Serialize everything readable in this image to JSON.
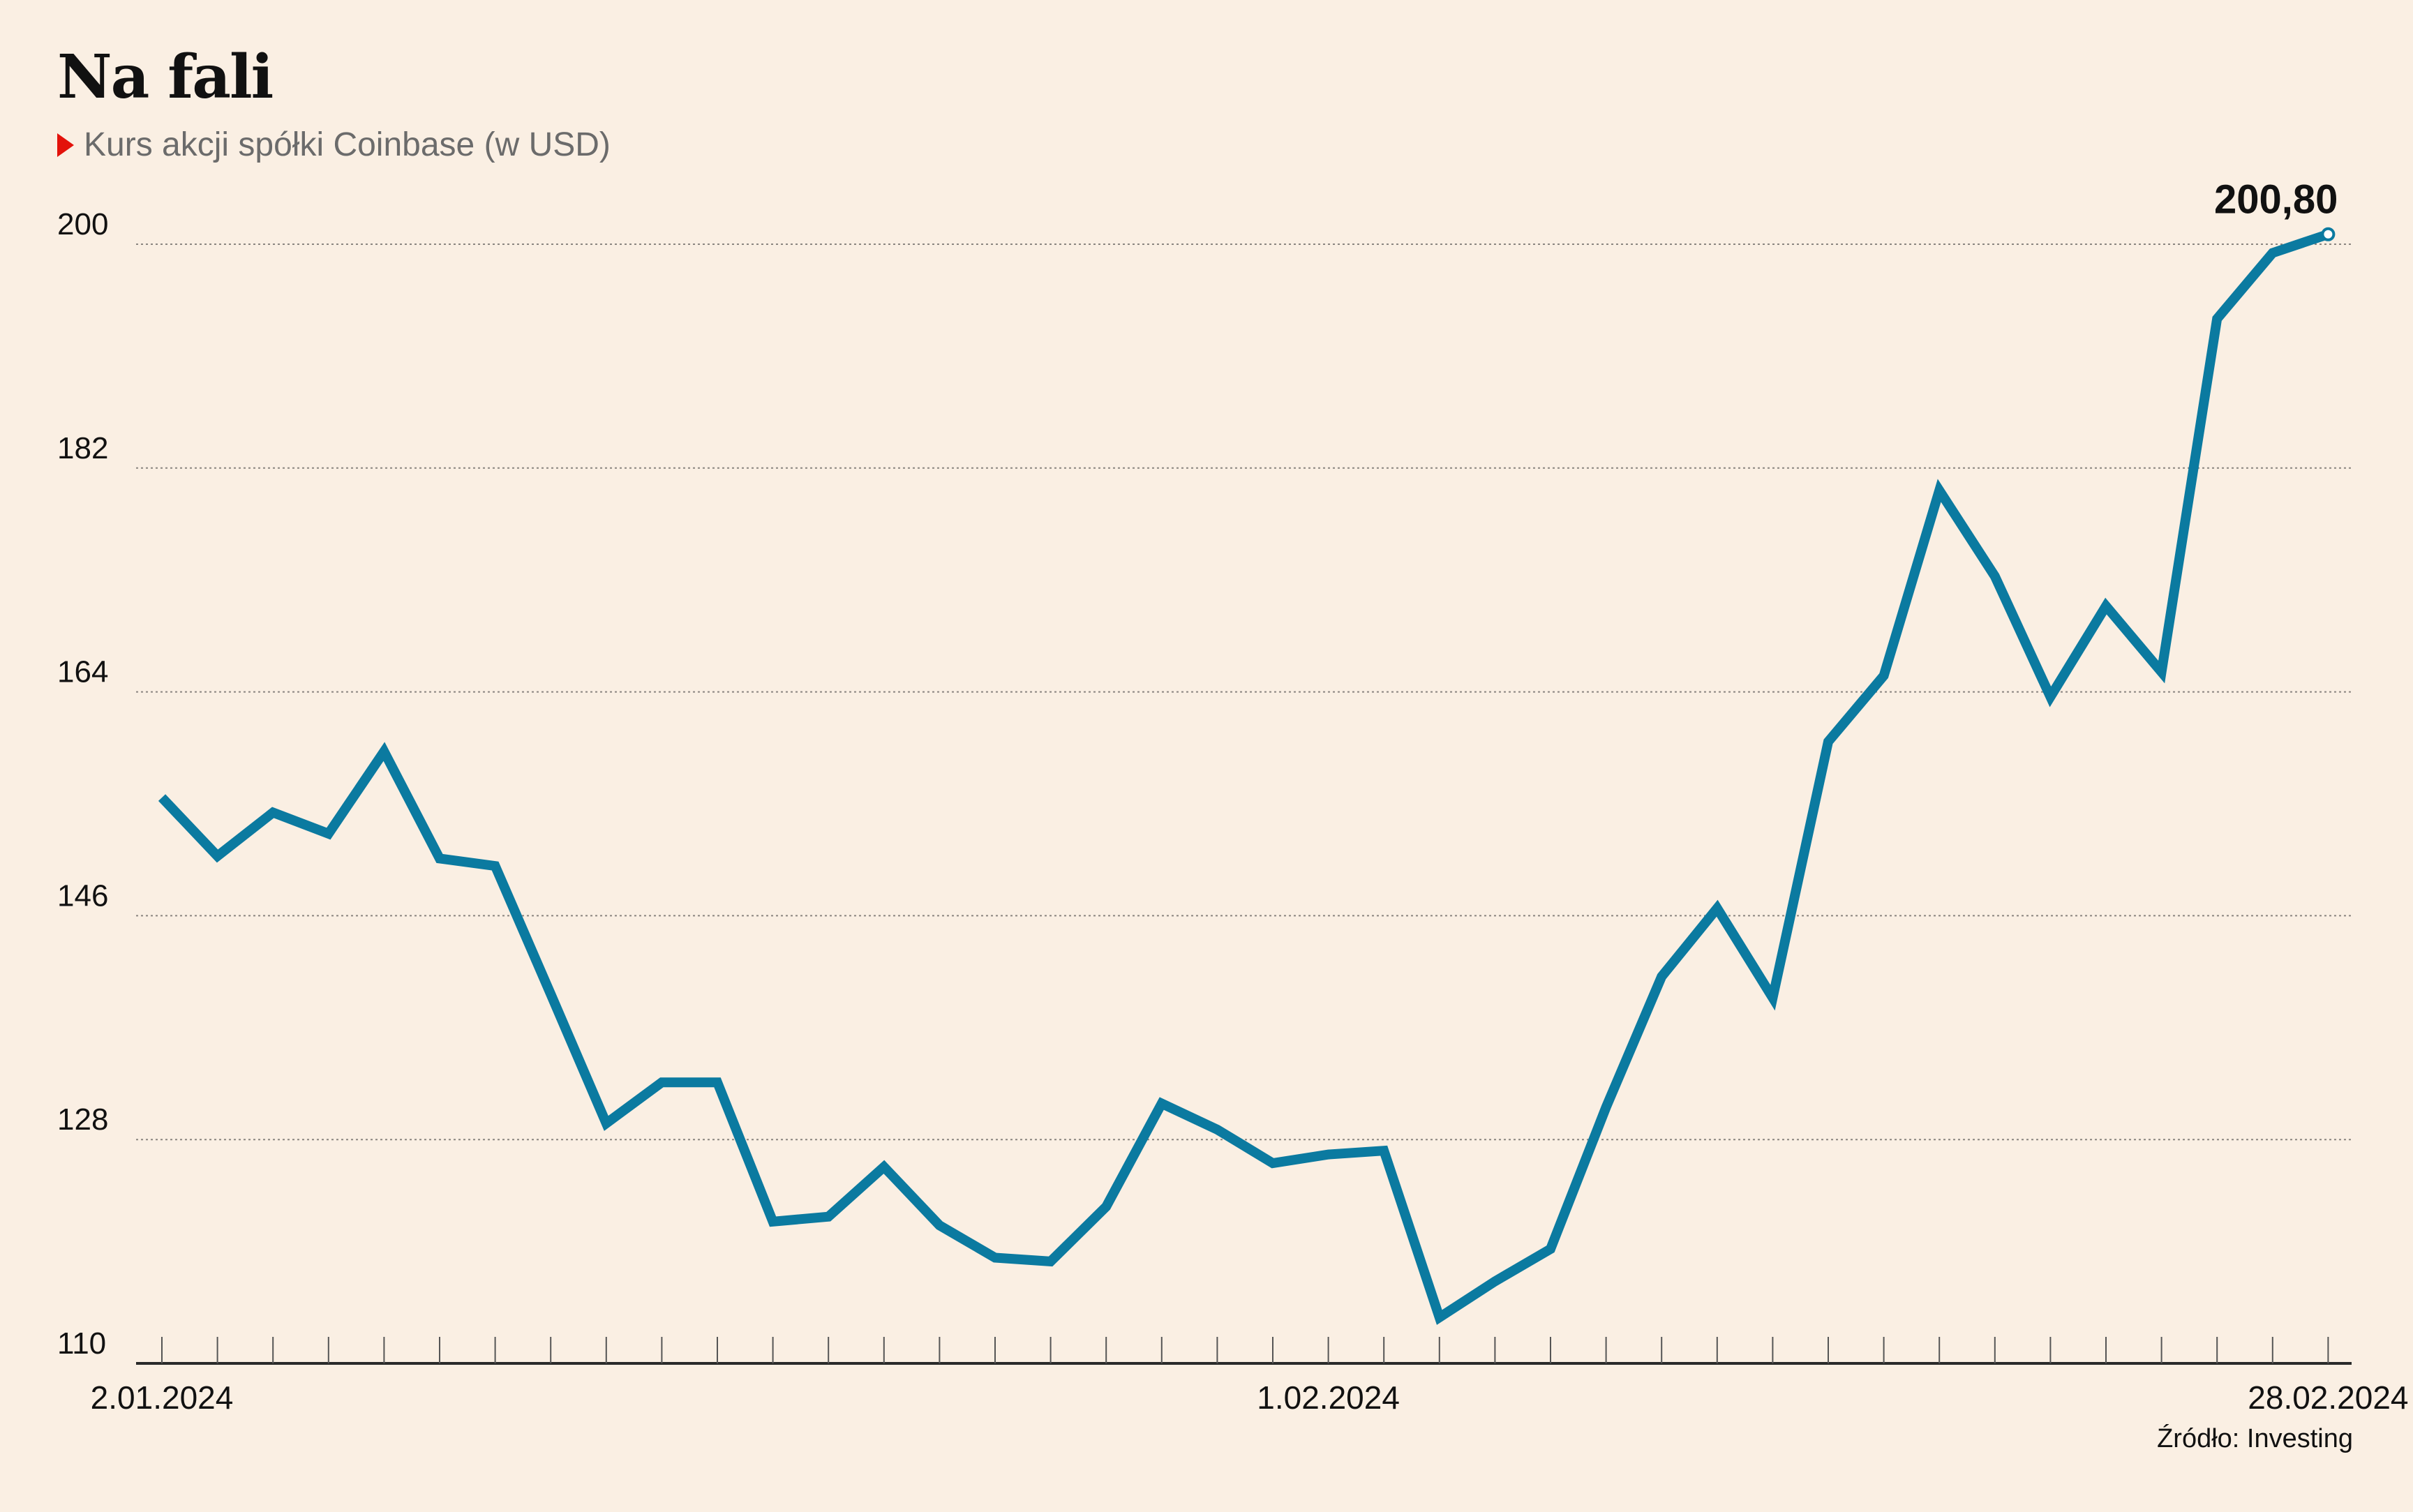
{
  "chart_data": {
    "type": "line",
    "title": "Na fali",
    "subtitle": "Kurs akcji spółki Coinbase (w USD)",
    "source": "Źródło: Investing",
    "accent_color": "#e3120b",
    "line_color": "#0b7aa0",
    "background_color": "#faefe3",
    "ylim": [
      110,
      200
    ],
    "y_ticks": [
      "110",
      "128",
      "146",
      "164",
      "182",
      "200"
    ],
    "x_labels": [
      {
        "index": 0,
        "text": "2.01.2024"
      },
      {
        "index": 21,
        "text": "1.02.2024"
      },
      {
        "index": 39,
        "text": "28.02.2024"
      }
    ],
    "last_value_label": "200,80",
    "grid": "horizontal dotted",
    "series": [
      {
        "values": [
          155.5,
          150.8,
          154.3,
          152.6,
          159.2,
          150.6,
          150.0,
          139.7,
          129.3,
          132.6,
          132.6,
          121.4,
          121.8,
          125.8,
          121.1,
          118.5,
          118.2,
          122.6,
          130.9,
          128.8,
          126.1,
          126.8,
          127.1,
          113.7,
          116.6,
          119.2,
          130.6,
          141.1,
          146.6,
          139.4,
          160.0,
          165.3,
          180.2,
          173.3,
          163.6,
          170.9,
          165.6,
          194.0,
          199.3,
          200.8
        ]
      }
    ]
  }
}
